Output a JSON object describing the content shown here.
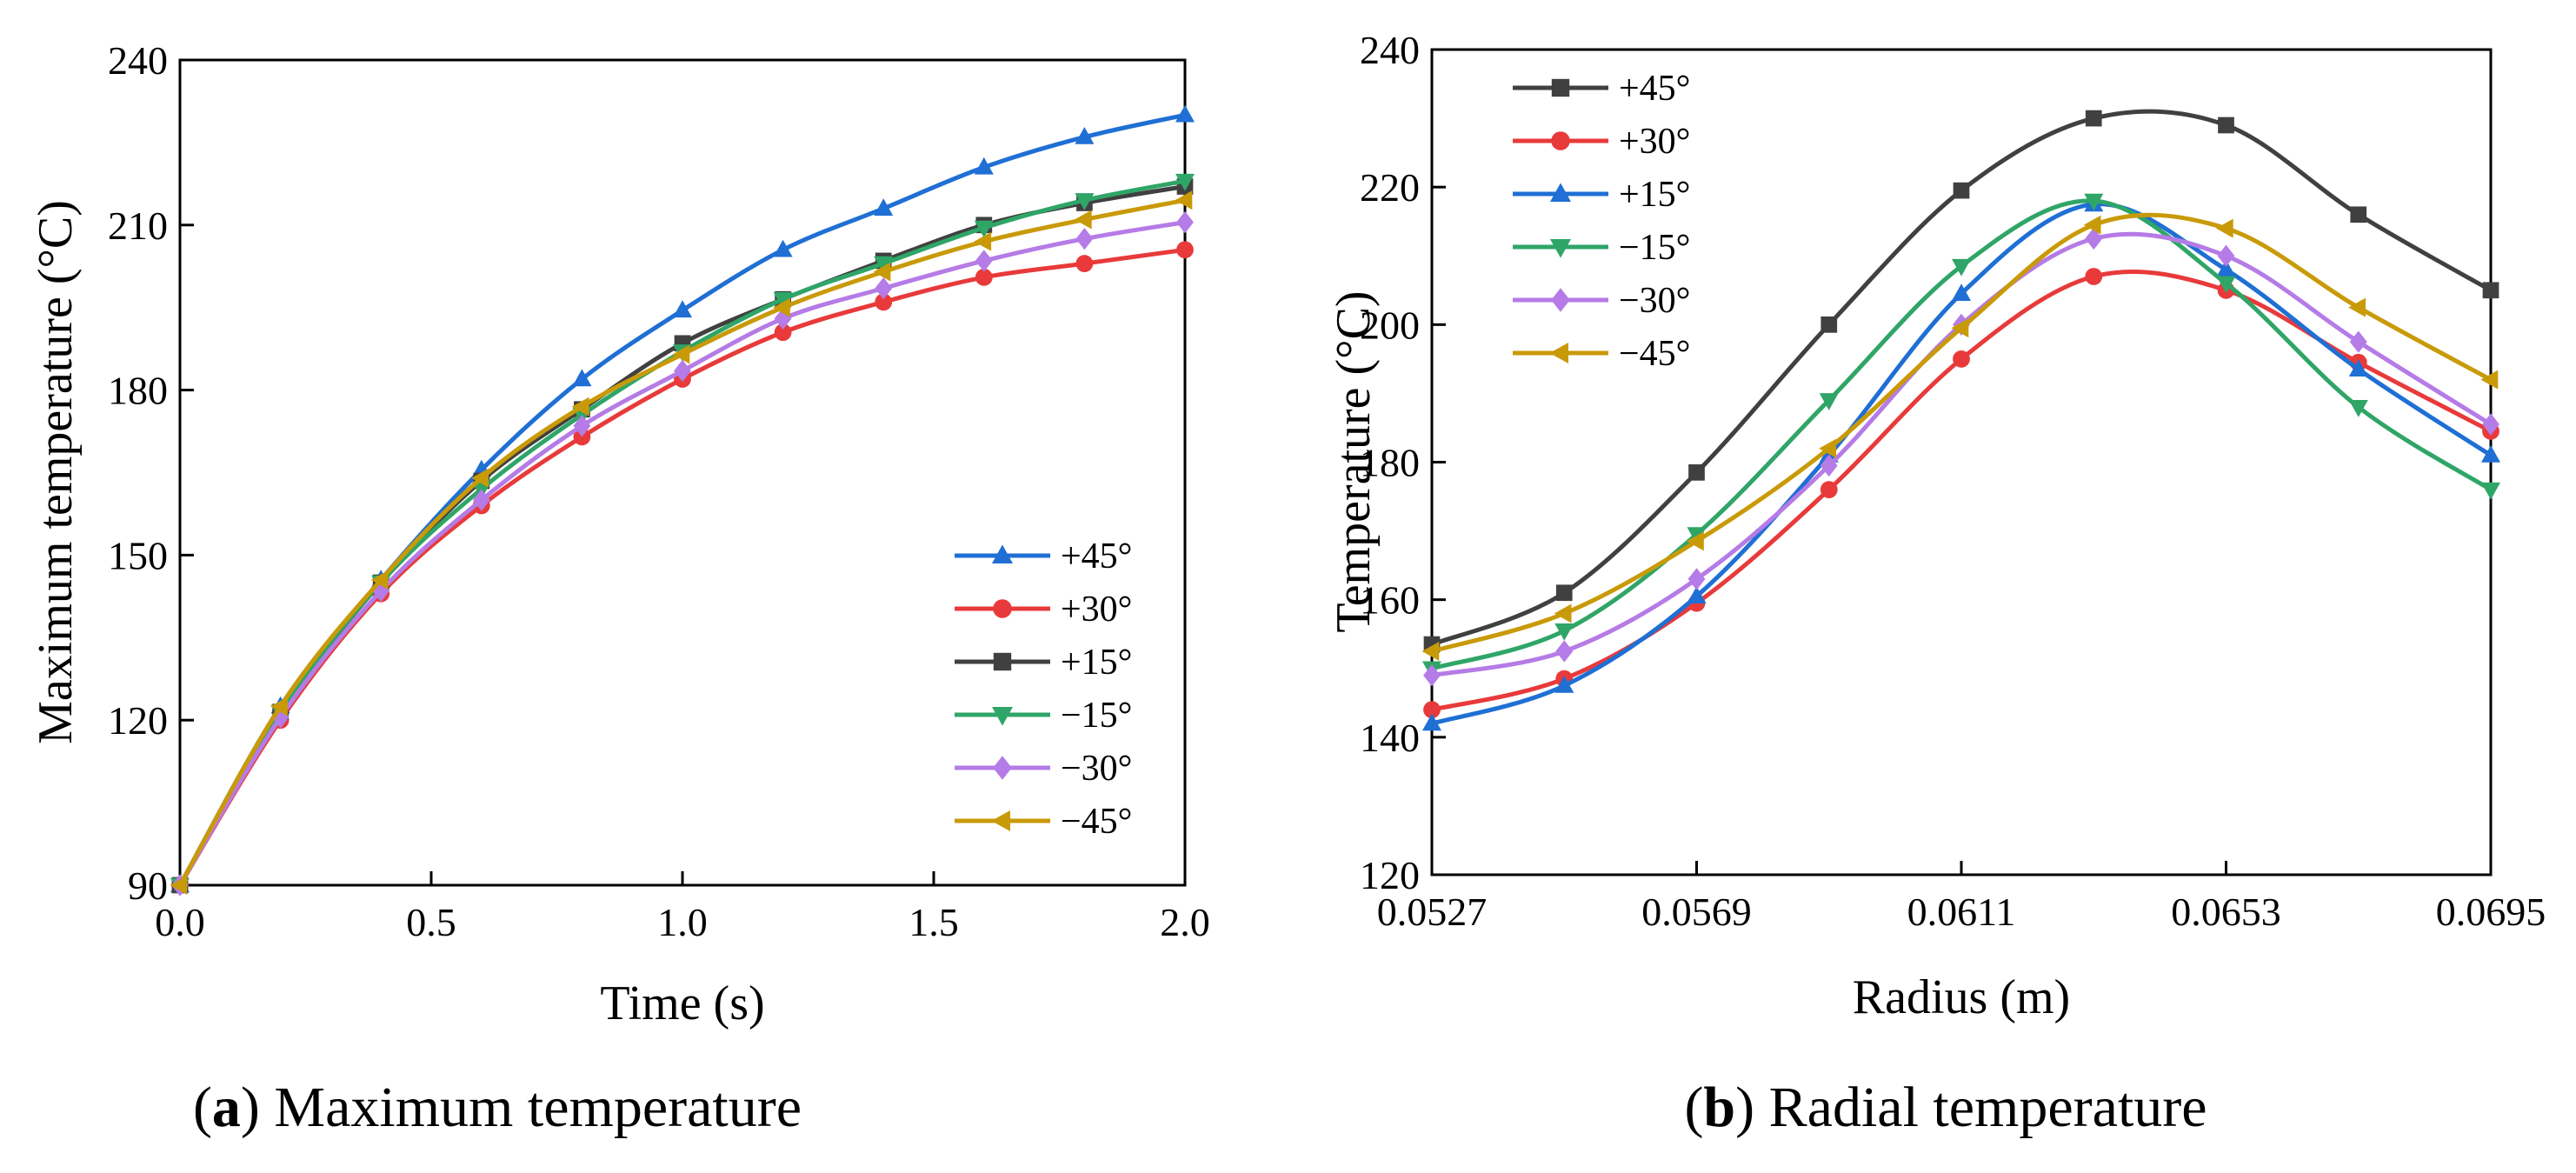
{
  "chart_data": [
    {
      "type": "line",
      "title": "",
      "caption": {
        "letter": "a",
        "text": "Maximum temperature"
      },
      "xlabel": "Time (s)",
      "ylabel": "Maximum temperature (°C)",
      "xlim": [
        0.0,
        2.0
      ],
      "ylim": [
        90,
        240
      ],
      "x_ticks": [
        "0.0",
        "0.5",
        "1.0",
        "1.5",
        "2.0"
      ],
      "x_tick_values": [
        0.0,
        0.5,
        1.0,
        1.5,
        2.0
      ],
      "y_ticks": [
        "90",
        "120",
        "150",
        "180",
        "210",
        "240"
      ],
      "y_tick_values": [
        90,
        120,
        150,
        180,
        210,
        240
      ],
      "legend_position": "bottom-right",
      "x": [
        0.0,
        0.2,
        0.4,
        0.6,
        0.8,
        1.0,
        1.2,
        1.4,
        1.6,
        1.8,
        2.0
      ],
      "series": [
        {
          "name": "+45°",
          "color": "#1f6fd4",
          "marker": "triangle-up",
          "values": [
            90,
            122.5,
            145.5,
            165.5,
            182,
            194.5,
            205.5,
            213,
            220.5,
            226,
            230
          ]
        },
        {
          "name": "+30°",
          "color": "#e83a3a",
          "marker": "circle",
          "values": [
            90,
            120,
            143,
            159,
            171.5,
            182,
            190.5,
            196,
            200.5,
            203,
            205.5
          ]
        },
        {
          "name": "+15°",
          "color": "#404040",
          "marker": "square",
          "values": [
            90,
            121.5,
            145,
            163.5,
            176.5,
            188.5,
            196.5,
            203.5,
            210,
            214,
            217
          ]
        },
        {
          "name": "−15°",
          "color": "#2fa567",
          "marker": "triangle-down",
          "values": [
            90,
            121.5,
            145,
            162,
            175.5,
            187,
            196.5,
            203,
            209.5,
            214.5,
            218
          ]
        },
        {
          "name": "−30°",
          "color": "#b57be6",
          "marker": "diamond",
          "values": [
            90,
            120.5,
            143.5,
            160,
            173.5,
            183.5,
            193,
            198.5,
            203.5,
            207.5,
            210.5
          ]
        },
        {
          "name": "−45°",
          "color": "#c99a08",
          "marker": "triangle-left",
          "values": [
            90,
            122.5,
            145.5,
            164,
            177,
            186.5,
            195,
            201.5,
            207,
            211,
            214.5
          ]
        }
      ]
    },
    {
      "type": "line",
      "title": "",
      "caption": {
        "letter": "b",
        "text": "Radial temperature"
      },
      "xlabel": "Radius (m)",
      "ylabel": "Temperature (°C)",
      "xlim": [
        0.0527,
        0.0695
      ],
      "ylim": [
        120,
        240
      ],
      "x_ticks": [
        "0.0527",
        "0.0569",
        "0.0611",
        "0.0653",
        "0.0695"
      ],
      "x_tick_values": [
        0.0527,
        0.0569,
        0.0611,
        0.0653,
        0.0695
      ],
      "y_ticks": [
        "120",
        "140",
        "160",
        "180",
        "200",
        "220",
        "240"
      ],
      "y_tick_values": [
        120,
        140,
        160,
        180,
        200,
        220,
        240
      ],
      "legend_position": "top-left",
      "x": [
        0.0527,
        0.0548,
        0.0569,
        0.059,
        0.0611,
        0.0632,
        0.0653,
        0.0674,
        0.0695
      ],
      "series": [
        {
          "name": "+45°",
          "color": "#404040",
          "marker": "square",
          "values": [
            153.5,
            161,
            178.5,
            200,
            219.5,
            230,
            229,
            216,
            205
          ]
        },
        {
          "name": "+30°",
          "color": "#e83a3a",
          "marker": "circle",
          "values": [
            144,
            148.5,
            159.5,
            176,
            195,
            207,
            205,
            194.5,
            184.5
          ]
        },
        {
          "name": "+15°",
          "color": "#1f6fd4",
          "marker": "triangle-up",
          "values": [
            142,
            147.5,
            160.5,
            181,
            204.5,
            217.5,
            208,
            193.5,
            181
          ]
        },
        {
          "name": "−15°",
          "color": "#2fa567",
          "marker": "triangle-down",
          "values": [
            150,
            155.5,
            169.5,
            189,
            208.5,
            218,
            206,
            188,
            176
          ]
        },
        {
          "name": "−30°",
          "color": "#b57be6",
          "marker": "diamond",
          "values": [
            149,
            152.5,
            163,
            179.5,
            200,
            212.5,
            210,
            197.5,
            185.5
          ]
        },
        {
          "name": "−45°",
          "color": "#c99a08",
          "marker": "triangle-left",
          "values": [
            152.5,
            158,
            168.5,
            182,
            199.5,
            214.5,
            214,
            202.5,
            192
          ]
        }
      ]
    }
  ]
}
